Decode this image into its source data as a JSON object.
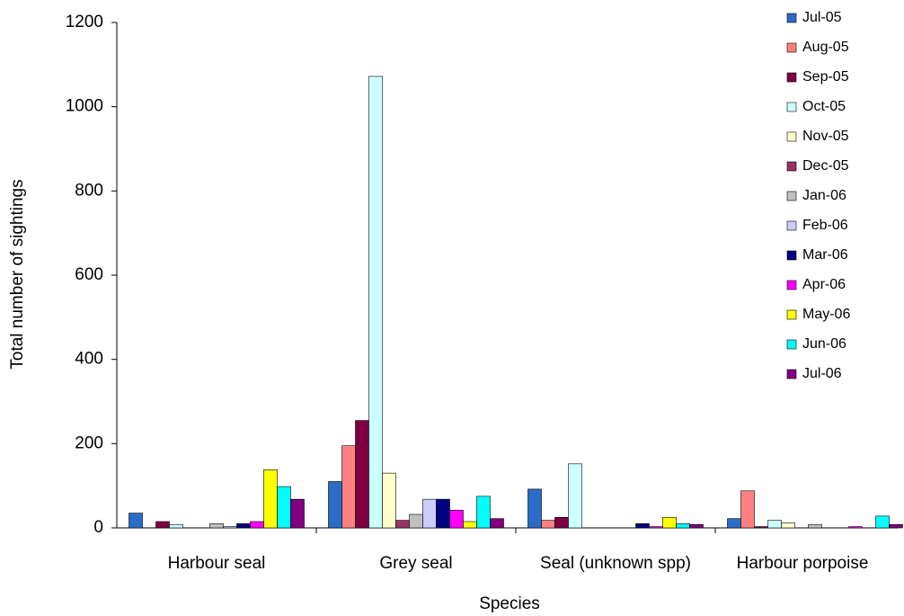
{
  "chart_data": {
    "type": "bar",
    "y_label": "Total number of sightings",
    "x_label": "Species",
    "categories": [
      "Harbour seal",
      "Grey seal",
      "Seal (unknown spp)",
      "Harbour porpoise"
    ],
    "ylim": [
      0,
      1200
    ],
    "yticks": [
      0,
      200,
      400,
      600,
      800,
      1000,
      1200
    ],
    "series": [
      {
        "name": "Jul-05",
        "color": "#2a6cc8",
        "values": [
          35,
          110,
          92,
          22
        ]
      },
      {
        "name": "Aug-05",
        "color": "#ff8080",
        "values": [
          0,
          195,
          18,
          88
        ]
      },
      {
        "name": "Sep-05",
        "color": "#7f0040",
        "values": [
          15,
          255,
          25,
          3
        ]
      },
      {
        "name": "Oct-05",
        "color": "#ccffff",
        "values": [
          8,
          1072,
          152,
          18
        ]
      },
      {
        "name": "Nov-05",
        "color": "#ffffcc",
        "values": [
          0,
          130,
          0,
          12
        ]
      },
      {
        "name": "Dec-05",
        "color": "#993366",
        "values": [
          0,
          18,
          0,
          0
        ]
      },
      {
        "name": "Jan-06",
        "color": "#c0c0c0",
        "values": [
          10,
          32,
          0,
          8
        ]
      },
      {
        "name": "Feb-06",
        "color": "#ccccff",
        "values": [
          3,
          68,
          0,
          0
        ]
      },
      {
        "name": "Mar-06",
        "color": "#000080",
        "values": [
          10,
          68,
          10,
          0
        ]
      },
      {
        "name": "Apr-06",
        "color": "#ff00ff",
        "values": [
          15,
          42,
          3,
          3
        ]
      },
      {
        "name": "May-06",
        "color": "#ffff00",
        "values": [
          138,
          15,
          25,
          0
        ]
      },
      {
        "name": "Jun-06",
        "color": "#00ffff",
        "values": [
          98,
          75,
          10,
          28
        ]
      },
      {
        "name": "Jul-06",
        "color": "#800080",
        "values": [
          68,
          22,
          8,
          8
        ]
      }
    ]
  }
}
